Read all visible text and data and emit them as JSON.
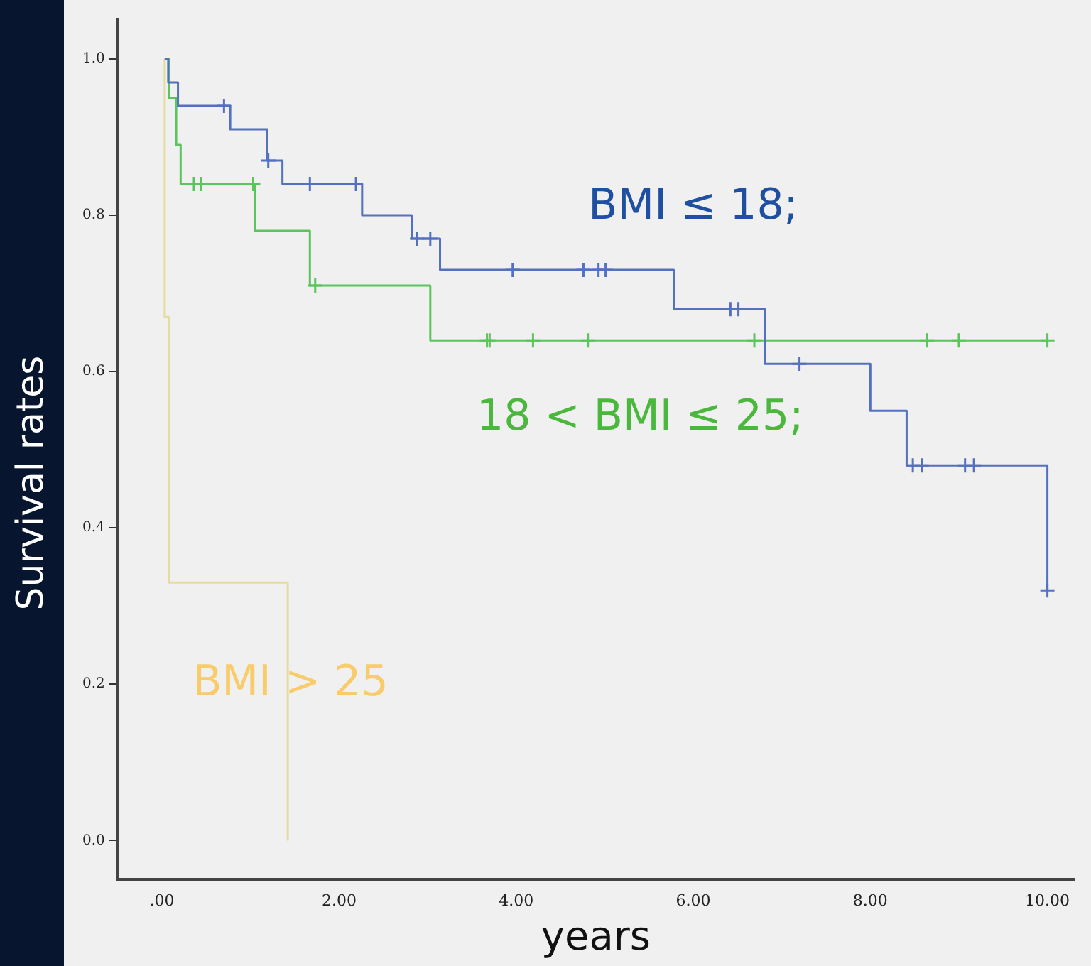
{
  "chart_data": {
    "type": "step",
    "xlabel": "years",
    "ylabel": "Survival rates",
    "xlim": [
      -0.5,
      10.3
    ],
    "ylim": [
      -0.05,
      1.05
    ],
    "xticks": [
      {
        "value": 0,
        "label": ".00"
      },
      {
        "value": 2,
        "label": "2.00"
      },
      {
        "value": 4,
        "label": "4.00"
      },
      {
        "value": 6,
        "label": "6.00"
      },
      {
        "value": 8,
        "label": "8.00"
      },
      {
        "value": 10,
        "label": "10.00"
      }
    ],
    "yticks": [
      {
        "value": 0,
        "label": "0.0"
      },
      {
        "value": 0.2,
        "label": "0.2"
      },
      {
        "value": 0.4,
        "label": "0.4"
      },
      {
        "value": 0.6,
        "label": "0.6"
      },
      {
        "value": 0.8,
        "label": "0.8"
      },
      {
        "value": 1,
        "label": "1.0"
      }
    ],
    "grid": false,
    "legend": false,
    "marker": "none",
    "line_style": "solid",
    "series": [
      {
        "name": "BMI ≤ 18;",
        "type": "step",
        "color": "#5470c0",
        "x": [
          0.03,
          0.07,
          0.18,
          0.77,
          1.19,
          1.36,
          2.26,
          2.82,
          3.14,
          5.78,
          6.81,
          8.0,
          8.41,
          10.0
        ],
        "values": [
          1.0,
          0.97,
          0.94,
          0.91,
          0.87,
          0.84,
          0.8,
          0.77,
          0.73,
          0.68,
          0.61,
          0.55,
          0.48,
          0.32
        ]
      },
      {
        "name": "18 < BMI ≤ 25;",
        "type": "step",
        "color": "#5cc45c",
        "x": [
          0.03,
          0.08,
          0.16,
          0.21,
          1.05,
          1.67,
          3.03,
          10.0
        ],
        "values": [
          1.0,
          0.95,
          0.89,
          0.84,
          0.78,
          0.71,
          0.64,
          0.64
        ]
      },
      {
        "name": "BMI > 25",
        "type": "step",
        "color": "#e6dca0",
        "x": [
          0.03,
          0.03,
          0.08,
          1.42
        ],
        "values": [
          1.0,
          0.67,
          0.33,
          0.0
        ]
      },
      {
        "type": "scatter",
        "marker": "cross",
        "color": "#5470c0",
        "x": [
          0.7,
          1.2,
          1.67,
          2.19,
          2.88,
          3.03,
          3.96,
          4.76,
          4.93,
          5.01,
          6.42,
          6.51,
          7.2,
          8.48,
          8.58,
          9.07,
          9.17,
          10.0
        ],
        "values": [
          0.94,
          0.87,
          0.84,
          0.84,
          0.77,
          0.77,
          0.73,
          0.73,
          0.73,
          0.73,
          0.68,
          0.68,
          0.61,
          0.48,
          0.48,
          0.48,
          0.48,
          0.32
        ]
      },
      {
        "type": "scatter",
        "marker": "cross",
        "color": "#5cc45c",
        "x": [
          0.36,
          0.44,
          1.03,
          1.73,
          3.67,
          3.7,
          4.19,
          4.81,
          6.69,
          8.64,
          9.0,
          10.0
        ],
        "values": [
          0.84,
          0.84,
          0.84,
          0.71,
          0.64,
          0.64,
          0.64,
          0.64,
          0.64,
          0.64,
          0.64,
          0.64
        ]
      }
    ]
  }
}
